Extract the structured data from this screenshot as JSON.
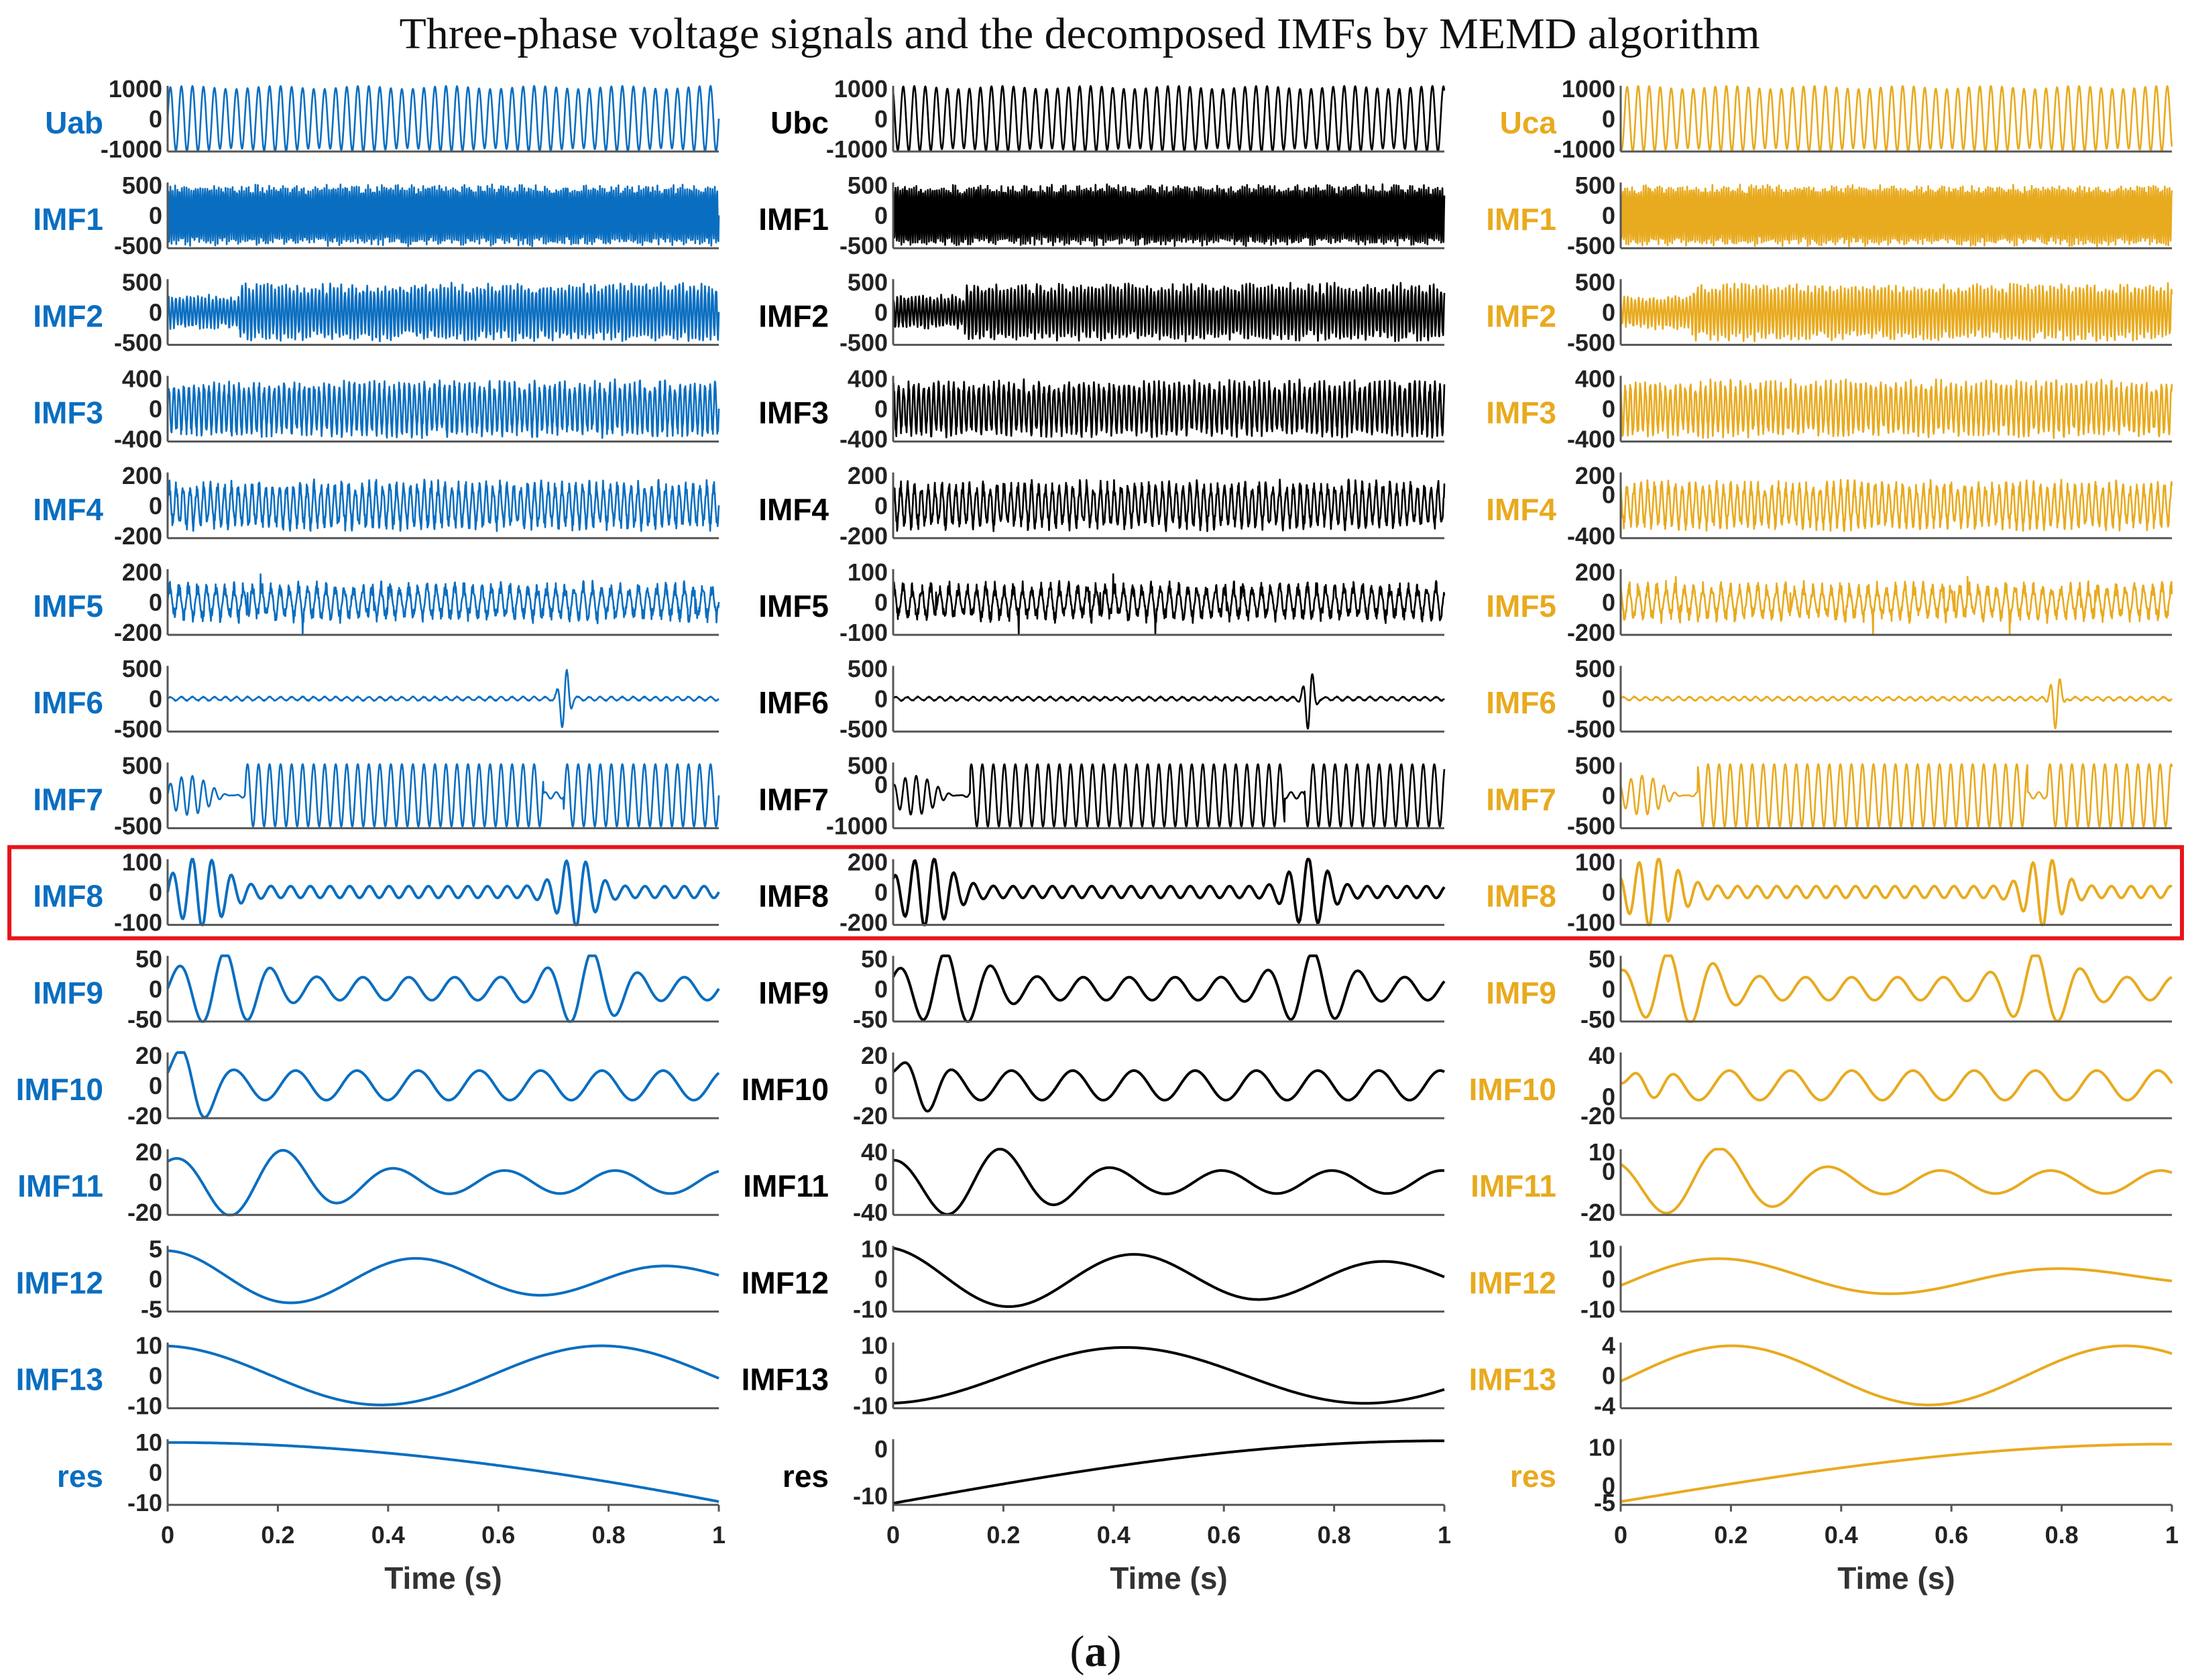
{
  "figure": {
    "title": "Three-phase voltage signals and the decomposed IMFs by MEMD algorithm",
    "caption_left": "(",
    "caption_letter": "a",
    "caption_right": ")"
  },
  "chart_data": {
    "type": "line",
    "x_label": "Time (s)",
    "x_range": [
      0,
      1
    ],
    "x_ticks": [
      "0",
      "0.2",
      "0.4",
      "0.6",
      "0.8",
      "1"
    ],
    "highlighted_row": "IMF8",
    "highlight_color": "#e8141c",
    "columns": [
      {
        "signal": "Uab",
        "color": "#0a6ec0",
        "rows": [
          {
            "label": "Uab",
            "ticks": [
              "1000",
              "0",
              "-1000"
            ],
            "ylim": [
              -1000,
              1000
            ]
          },
          {
            "label": "IMF1",
            "ticks": [
              "500",
              "0",
              "-500"
            ],
            "ylim": [
              -500,
              500
            ]
          },
          {
            "label": "IMF2",
            "ticks": [
              "500",
              "0",
              "-500"
            ],
            "ylim": [
              -500,
              500
            ]
          },
          {
            "label": "IMF3",
            "ticks": [
              "400",
              "0",
              "-400"
            ],
            "ylim": [
              -400,
              400
            ]
          },
          {
            "label": "IMF4",
            "ticks": [
              "200",
              "0",
              "-200"
            ],
            "ylim": [
              -200,
              200
            ]
          },
          {
            "label": "IMF5",
            "ticks": [
              "200",
              "0",
              "-200"
            ],
            "ylim": [
              -200,
              200
            ]
          },
          {
            "label": "IMF6",
            "ticks": [
              "500",
              "0",
              "-500"
            ],
            "ylim": [
              -500,
              500
            ]
          },
          {
            "label": "IMF7",
            "ticks": [
              "500",
              "0",
              "-500"
            ],
            "ylim": [
              -500,
              500
            ]
          },
          {
            "label": "IMF8",
            "ticks": [
              "100",
              "0",
              "-100"
            ],
            "ylim": [
              -100,
              100
            ]
          },
          {
            "label": "IMF9",
            "ticks": [
              "50",
              "0",
              "-50"
            ],
            "ylim": [
              -50,
              50
            ]
          },
          {
            "label": "IMF10",
            "ticks": [
              "20",
              "0",
              "-20"
            ],
            "ylim": [
              -20,
              20
            ]
          },
          {
            "label": "IMF11",
            "ticks": [
              "20",
              "0",
              "-20"
            ],
            "ylim": [
              -20,
              20
            ]
          },
          {
            "label": "IMF12",
            "ticks": [
              "5",
              "0",
              "-5"
            ],
            "ylim": [
              -5,
              5
            ]
          },
          {
            "label": "IMF13",
            "ticks": [
              "10",
              "0",
              "-10"
            ],
            "ylim": [
              -10,
              10
            ]
          },
          {
            "label": "res",
            "ticks": [
              "10",
              "0",
              "-10"
            ],
            "ylim": [
              -10,
              10
            ]
          }
        ]
      },
      {
        "signal": "Ubc",
        "color": "#000000",
        "rows": [
          {
            "label": "Ubc",
            "ticks": [
              "1000",
              "0",
              "-1000"
            ],
            "ylim": [
              -1000,
              1000
            ]
          },
          {
            "label": "IMF1",
            "ticks": [
              "500",
              "0",
              "-500"
            ],
            "ylim": [
              -500,
              500
            ]
          },
          {
            "label": "IMF2",
            "ticks": [
              "500",
              "0",
              "-500"
            ],
            "ylim": [
              -500,
              500
            ]
          },
          {
            "label": "IMF3",
            "ticks": [
              "400",
              "0",
              "-400"
            ],
            "ylim": [
              -400,
              400
            ]
          },
          {
            "label": "IMF4",
            "ticks": [
              "200",
              "0",
              "-200"
            ],
            "ylim": [
              -200,
              200
            ]
          },
          {
            "label": "IMF5",
            "ticks": [
              "100",
              "0",
              "-100"
            ],
            "ylim": [
              -100,
              100
            ]
          },
          {
            "label": "IMF6",
            "ticks": [
              "500",
              "0",
              "-500"
            ],
            "ylim": [
              -500,
              500
            ]
          },
          {
            "label": "IMF7",
            "ticks": [
              "500",
              "0",
              "-1000"
            ],
            "ylim": [
              -1000,
              500
            ]
          },
          {
            "label": "IMF8",
            "ticks": [
              "200",
              "0",
              "-200"
            ],
            "ylim": [
              -200,
              200
            ]
          },
          {
            "label": "IMF9",
            "ticks": [
              "50",
              "0",
              "-50"
            ],
            "ylim": [
              -50,
              50
            ]
          },
          {
            "label": "IMF10",
            "ticks": [
              "20",
              "0",
              "-20"
            ],
            "ylim": [
              -20,
              20
            ]
          },
          {
            "label": "IMF11",
            "ticks": [
              "40",
              "0",
              "-40"
            ],
            "ylim": [
              -40,
              40
            ]
          },
          {
            "label": "IMF12",
            "ticks": [
              "10",
              "0",
              "-10"
            ],
            "ylim": [
              -10,
              10
            ]
          },
          {
            "label": "IMF13",
            "ticks": [
              "10",
              "0",
              "-10"
            ],
            "ylim": [
              -10,
              10
            ]
          },
          {
            "label": "res",
            "ticks": [
              "0",
              "-10"
            ],
            "ylim": [
              -12,
              2
            ]
          }
        ]
      },
      {
        "signal": "Uca",
        "color": "#e8aa1e",
        "rows": [
          {
            "label": "Uca",
            "ticks": [
              "1000",
              "0",
              "-1000"
            ],
            "ylim": [
              -1000,
              1000
            ]
          },
          {
            "label": "IMF1",
            "ticks": [
              "500",
              "0",
              "-500"
            ],
            "ylim": [
              -500,
              500
            ]
          },
          {
            "label": "IMF2",
            "ticks": [
              "500",
              "0",
              "-500"
            ],
            "ylim": [
              -500,
              500
            ]
          },
          {
            "label": "IMF3",
            "ticks": [
              "400",
              "0",
              "-400"
            ],
            "ylim": [
              -400,
              400
            ]
          },
          {
            "label": "IMF4",
            "ticks": [
              "200",
              "0",
              "-400"
            ],
            "ylim": [
              -400,
              200
            ]
          },
          {
            "label": "IMF5",
            "ticks": [
              "200",
              "0",
              "-200"
            ],
            "ylim": [
              -200,
              200
            ]
          },
          {
            "label": "IMF6",
            "ticks": [
              "500",
              "0",
              "-500"
            ],
            "ylim": [
              -500,
              500
            ]
          },
          {
            "label": "IMF7",
            "ticks": [
              "500",
              "0",
              "-500"
            ],
            "ylim": [
              -500,
              500
            ]
          },
          {
            "label": "IMF8",
            "ticks": [
              "100",
              "0",
              "-100"
            ],
            "ylim": [
              -100,
              100
            ]
          },
          {
            "label": "IMF9",
            "ticks": [
              "50",
              "0",
              "-50"
            ],
            "ylim": [
              -50,
              50
            ]
          },
          {
            "label": "IMF10",
            "ticks": [
              "40",
              "0",
              "-20"
            ],
            "ylim": [
              -20,
              40
            ]
          },
          {
            "label": "IMF11",
            "ticks": [
              "10",
              "0",
              "-20"
            ],
            "ylim": [
              -20,
              10
            ]
          },
          {
            "label": "IMF12",
            "ticks": [
              "10",
              "0",
              "-10"
            ],
            "ylim": [
              -10,
              10
            ]
          },
          {
            "label": "IMF13",
            "ticks": [
              "4",
              "0",
              "-4"
            ],
            "ylim": [
              -4,
              4
            ]
          },
          {
            "label": "res",
            "ticks": [
              "10",
              "0",
              "-5"
            ],
            "ylim": [
              -5,
              12
            ]
          }
        ]
      }
    ]
  }
}
